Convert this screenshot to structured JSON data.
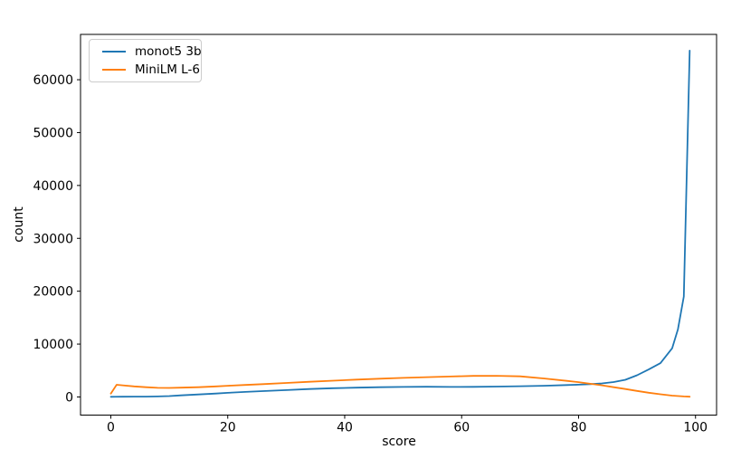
{
  "chart_data": {
    "type": "line",
    "title": "",
    "xlabel": "score",
    "ylabel": "count",
    "xlim": [
      -5.18,
      103.6
    ],
    "ylim": [
      -3430,
      68570
    ],
    "x_ticks": [
      0,
      20,
      40,
      60,
      80,
      100
    ],
    "y_ticks": [
      0,
      10000,
      20000,
      30000,
      40000,
      50000,
      60000
    ],
    "grid": false,
    "background": "#ffffff",
    "legend_position": "upper left",
    "series": [
      {
        "name": "monot5 3b",
        "color": "#1f77b4",
        "x": [
          0,
          2,
          4,
          6,
          8,
          10,
          12,
          15,
          18,
          20,
          23,
          26,
          30,
          34,
          38,
          42,
          46,
          50,
          54,
          58,
          62,
          66,
          70,
          74,
          78,
          80,
          82,
          84,
          86,
          88,
          90,
          92,
          94,
          96,
          97,
          98,
          99
        ],
        "y": [
          30,
          45,
          55,
          70,
          90,
          160,
          300,
          480,
          650,
          780,
          950,
          1100,
          1300,
          1500,
          1650,
          1750,
          1850,
          1900,
          1930,
          1900,
          1920,
          1970,
          2030,
          2120,
          2250,
          2320,
          2420,
          2570,
          2820,
          3250,
          4100,
          5200,
          6400,
          9200,
          12800,
          19000,
          65500
        ]
      },
      {
        "name": "MiniLM L-6",
        "color": "#ff7f0e",
        "x": [
          0,
          1,
          2,
          4,
          6,
          8,
          10,
          12,
          15,
          18,
          20,
          23,
          26,
          30,
          34,
          38,
          42,
          46,
          50,
          54,
          58,
          62,
          66,
          70,
          74,
          78,
          80,
          82,
          84,
          86,
          88,
          90,
          92,
          94,
          96,
          98,
          99
        ],
        "y": [
          650,
          2300,
          2200,
          2000,
          1850,
          1720,
          1700,
          1750,
          1850,
          2000,
          2120,
          2280,
          2430,
          2650,
          2870,
          3080,
          3280,
          3450,
          3600,
          3750,
          3870,
          3980,
          4000,
          3900,
          3500,
          3050,
          2800,
          2500,
          2200,
          1850,
          1500,
          1150,
          800,
          500,
          250,
          100,
          40
        ]
      }
    ]
  }
}
